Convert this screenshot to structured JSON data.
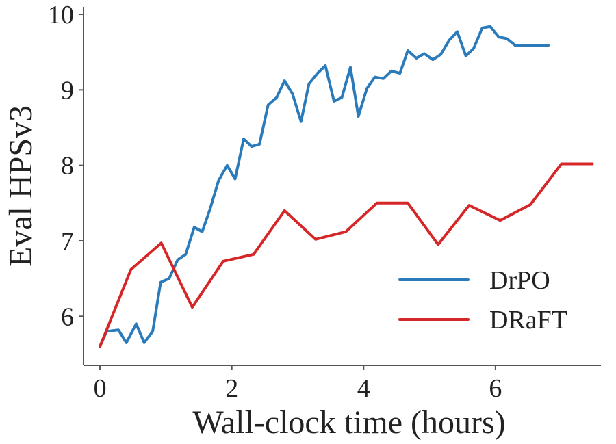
{
  "chart_data": {
    "type": "line",
    "title": "",
    "xlabel": "Wall-clock time (hours)",
    "ylabel": "Eval HPSv3",
    "xlim": [
      -0.25,
      7.6
    ],
    "ylim": [
      5.35,
      10.1
    ],
    "xticks": [
      0,
      2,
      4,
      6
    ],
    "yticks": [
      6,
      7,
      8,
      9,
      10
    ],
    "grid": false,
    "legend_position": "lower-right",
    "series": [
      {
        "name": "DrPO",
        "color": "#2b7bba",
        "x": [
          0.0,
          0.1,
          0.28,
          0.4,
          0.55,
          0.67,
          0.8,
          0.92,
          1.05,
          1.18,
          1.3,
          1.43,
          1.55,
          1.67,
          1.8,
          1.93,
          2.05,
          2.18,
          2.3,
          2.42,
          2.55,
          2.68,
          2.8,
          2.92,
          3.05,
          3.17,
          3.3,
          3.42,
          3.55,
          3.67,
          3.8,
          3.92,
          4.05,
          4.17,
          4.3,
          4.42,
          4.55,
          4.67,
          4.8,
          4.92,
          5.05,
          5.17,
          5.3,
          5.42,
          5.55,
          5.67,
          5.8,
          5.92,
          6.05,
          6.17,
          6.3,
          6.42,
          6.55,
          6.67,
          6.8
        ],
        "y": [
          5.6,
          5.8,
          5.82,
          5.65,
          5.9,
          5.65,
          5.8,
          6.45,
          6.5,
          6.75,
          6.82,
          7.18,
          7.12,
          7.42,
          7.8,
          8.0,
          7.82,
          8.35,
          8.25,
          8.28,
          8.8,
          8.9,
          9.12,
          8.95,
          8.58,
          9.08,
          9.22,
          9.32,
          8.85,
          8.9,
          9.3,
          8.65,
          9.02,
          9.17,
          9.15,
          9.25,
          9.22,
          9.52,
          9.42,
          9.48,
          9.4,
          9.47,
          9.66,
          9.77,
          9.45,
          9.55,
          9.82,
          9.84,
          9.7,
          9.68,
          9.59,
          9.59,
          9.59,
          9.59,
          9.59
        ]
      },
      {
        "name": "DRaFT",
        "color": "#d62728",
        "x": [
          0.0,
          0.47,
          0.93,
          1.4,
          1.87,
          2.33,
          2.8,
          3.27,
          3.73,
          4.2,
          4.67,
          5.13,
          5.6,
          6.07,
          6.53,
          7.0,
          7.47
        ],
        "y": [
          5.6,
          6.62,
          6.97,
          6.12,
          6.73,
          6.82,
          7.4,
          7.02,
          7.12,
          7.5,
          7.5,
          6.95,
          7.47,
          7.27,
          7.48,
          8.02,
          8.02
        ]
      }
    ]
  }
}
